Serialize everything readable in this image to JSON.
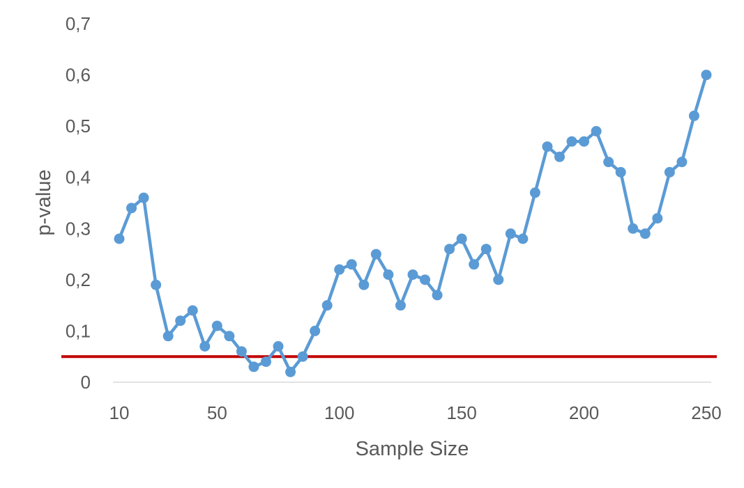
{
  "chart_data": {
    "type": "line",
    "title": "",
    "xlabel": "Sample Size",
    "ylabel": "p-value",
    "ylim": [
      0,
      0.7
    ],
    "grid": false,
    "legend": "none",
    "y_tick_labels": [
      "0",
      "0,1",
      "0,2",
      "0,3",
      "0,4",
      "0,5",
      "0,6",
      "0,7"
    ],
    "x_tick_labels": [
      {
        "value": 10,
        "label": "10"
      },
      {
        "value": 50,
        "label": "50"
      },
      {
        "value": 100,
        "label": "100"
      },
      {
        "value": 150,
        "label": "150"
      },
      {
        "value": 200,
        "label": "200"
      },
      {
        "value": 250,
        "label": "250"
      }
    ],
    "series": [
      {
        "color": "#5b9bd5",
        "x": [
          10,
          15,
          20,
          25,
          30,
          35,
          40,
          45,
          50,
          55,
          60,
          65,
          70,
          75,
          80,
          85,
          90,
          95,
          100,
          105,
          110,
          115,
          120,
          125,
          130,
          135,
          140,
          145,
          150,
          155,
          160,
          165,
          170,
          175,
          180,
          185,
          190,
          195,
          200,
          205,
          210,
          215,
          220,
          225,
          230,
          235,
          240,
          245,
          250
        ],
        "values": [
          0.28,
          0.34,
          0.36,
          0.19,
          0.09,
          0.12,
          0.14,
          0.07,
          0.11,
          0.09,
          0.06,
          0.03,
          0.04,
          0.07,
          0.02,
          0.05,
          0.1,
          0.15,
          0.22,
          0.23,
          0.19,
          0.25,
          0.21,
          0.15,
          0.21,
          0.2,
          0.17,
          0.26,
          0.28,
          0.23,
          0.26,
          0.2,
          0.29,
          0.28,
          0.37,
          0.46,
          0.44,
          0.47,
          0.47,
          0.49,
          0.43,
          0.41,
          0.3,
          0.29,
          0.32,
          0.41,
          0.43,
          0.52,
          0.6
        ]
      }
    ],
    "reference_line": {
      "y": 0.05,
      "color": "#c00000"
    },
    "axis_color": "#d9d9d9"
  }
}
